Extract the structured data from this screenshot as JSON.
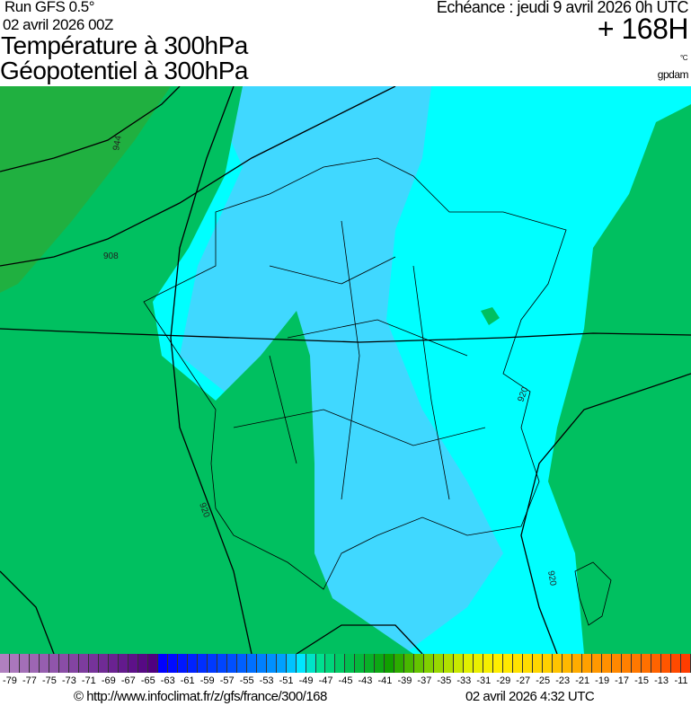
{
  "header": {
    "run": "Run GFS 0.5°",
    "run_date": "02 avril 2026 00Z",
    "title1": "Température à 300hPa",
    "title2": "Géopotentiel à 300hPa",
    "echeance": "Echéance : jeudi 9 avril 2026 0h UTC",
    "lead": "+ 168H",
    "unit_temp": "°C",
    "unit_geo": "gpdam"
  },
  "map": {
    "contour_labels": [
      "944",
      "908",
      "920",
      "920",
      "920"
    ],
    "colors": {
      "cyan": "#00ffff",
      "light_blue": "#40d8ff",
      "green": "#00c060",
      "dark_green": "#20b040",
      "border": "#000000"
    }
  },
  "colorbar": {
    "min": -80,
    "max": -10,
    "step": 1,
    "tick_labels": [
      "-79",
      "-77",
      "-75",
      "-73",
      "-71",
      "-69",
      "-67",
      "-65",
      "-63",
      "-61",
      "-59",
      "-57",
      "-55",
      "-53",
      "-51",
      "-49",
      "-47",
      "-45",
      "-43",
      "-41",
      "-39",
      "-37",
      "-35",
      "-33",
      "-31",
      "-29",
      "-27",
      "-25",
      "-23",
      "-21",
      "-19",
      "-17",
      "-15",
      "-13",
      "-11"
    ]
  },
  "footer": {
    "credit": "© http://www.infoclimat.fr/z/gfs/france/300/168",
    "generated": "02 avril 2026  4:32 UTC"
  }
}
